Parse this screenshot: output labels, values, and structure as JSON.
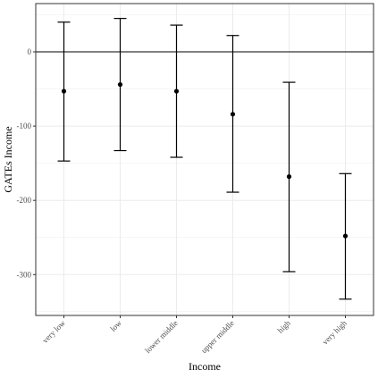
{
  "chart_data": {
    "type": "errorbar",
    "xlabel": "Income",
    "ylabel": "GATEs Income",
    "categories": [
      "very low",
      "low",
      "lower middle",
      "upper middle",
      "high",
      "very high"
    ],
    "values": [
      -53,
      -44,
      -53,
      -84,
      -168,
      -248
    ],
    "lower": [
      -147,
      -133,
      -142,
      -189,
      -296,
      -333
    ],
    "upper": [
      40,
      45,
      36,
      22,
      -41,
      -164
    ],
    "ylim": [
      -355,
      65
    ],
    "yticks": [
      0,
      -100,
      -200,
      -300
    ],
    "ytick_labels": [
      "0",
      "-100",
      "-200",
      "-300"
    ],
    "reference_line": 0,
    "grid": true,
    "colors": {
      "panel_border": "#333333",
      "grid": "#ebebeb",
      "marks": "#000000"
    }
  }
}
